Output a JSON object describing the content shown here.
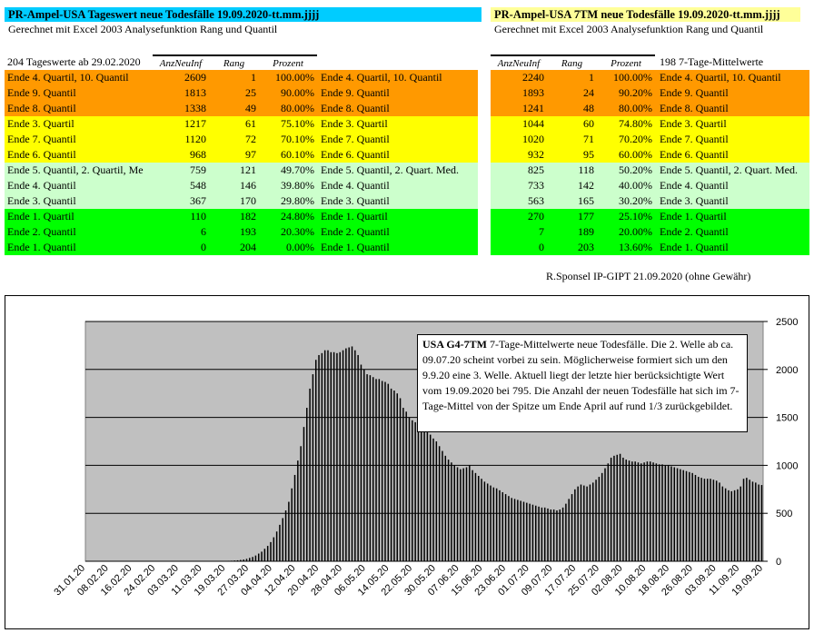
{
  "left": {
    "title": "PR-Ampel-USA Tageswert neue Todesfälle 19.09.2020-tt.mm.jjjj",
    "subtitle": "Gerechnet mit Excel 2003 Analysefunktion Rang und Quantil",
    "count_label": "204 Tageswerte ab 29.02.2020",
    "headers": [
      "AnzNeuInf",
      "Rang",
      "Prozent"
    ],
    "rows": [
      {
        "label": "Ende 4. Quartil, 10. Quantil",
        "value": "2609",
        "rank": "1",
        "pct": "100.00%",
        "label2": "Ende 4. Quartil, 10. Quantil"
      },
      {
        "label": "Ende 9. Quantil",
        "value": "1813",
        "rank": "25",
        "pct": "90.00%",
        "label2": "Ende 9. Quantil"
      },
      {
        "label": "Ende 8. Quantil",
        "value": "1338",
        "rank": "49",
        "pct": "80.00%",
        "label2": "Ende 8. Quantil"
      },
      {
        "label": "Ende 3. Quartil",
        "value": "1217",
        "rank": "61",
        "pct": "75.10%",
        "label2": "Ende 3. Quartil"
      },
      {
        "label": "Ende 7. Quantil",
        "value": "1120",
        "rank": "72",
        "pct": "70.10%",
        "label2": "Ende 7. Quantil"
      },
      {
        "label": "Ende 6. Quantil",
        "value": "968",
        "rank": "97",
        "pct": "60.10%",
        "label2": "Ende 6. Quantil"
      },
      {
        "label": "Ende 5. Quantil, 2. Quartil, Me",
        "value": "759",
        "rank": "121",
        "pct": "49.70%",
        "label2": "Ende 5. Quantil, 2. Quart. Med."
      },
      {
        "label": "Ende 4. Quantil",
        "value": "548",
        "rank": "146",
        "pct": "39.80%",
        "label2": "Ende 4. Quantil"
      },
      {
        "label": "Ende 3. Quantil",
        "value": "367",
        "rank": "170",
        "pct": "29.80%",
        "label2": "Ende 3. Quantil"
      },
      {
        "label": "Ende 1. Quartil",
        "value": "110",
        "rank": "182",
        "pct": "24.80%",
        "label2": "Ende 1. Quartil"
      },
      {
        "label": "Ende 2. Quantil",
        "value": "6",
        "rank": "193",
        "pct": "20.30%",
        "label2": "Ende 2. Quantil"
      },
      {
        "label": "Ende 1. Quantil",
        "value": "0",
        "rank": "204",
        "pct": "0.00%",
        "label2": "Ende 1. Quantil"
      }
    ]
  },
  "right": {
    "title": "PR-Ampel-USA 7TM neue Todesfälle 19.09.2020-tt.mm.jjjj",
    "subtitle": "Gerechnet mit Excel 2003 Analysefunktion Rang und Quantil",
    "count_label": "198  7-Tage-Mittelwerte",
    "headers": [
      "AnzNeuInf",
      "Rang",
      "Prozent"
    ],
    "rows": [
      {
        "value": "2240",
        "rank": "1",
        "pct": "100.00%",
        "label": "Ende 4. Quartil, 10. Quantil"
      },
      {
        "value": "1893",
        "rank": "24",
        "pct": "90.20%",
        "label": "Ende 9. Quantil"
      },
      {
        "value": "1241",
        "rank": "48",
        "pct": "80.00%",
        "label": "Ende 8. Quantil"
      },
      {
        "value": "1044",
        "rank": "60",
        "pct": "74.80%",
        "label": "Ende 3. Quartil"
      },
      {
        "value": "1020",
        "rank": "71",
        "pct": "70.20%",
        "label": "Ende 7. Quantil"
      },
      {
        "value": "932",
        "rank": "95",
        "pct": "60.00%",
        "label": "Ende 6. Quantil"
      },
      {
        "value": "825",
        "rank": "118",
        "pct": "50.20%",
        "label": "Ende 5. Quantil, 2. Quart. Med."
      },
      {
        "value": "733",
        "rank": "142",
        "pct": "40.00%",
        "label": "Ende 4. Quantil"
      },
      {
        "value": "563",
        "rank": "165",
        "pct": "30.20%",
        "label": "Ende 3. Quantil"
      },
      {
        "value": "270",
        "rank": "177",
        "pct": "25.10%",
        "label": "Ende 1. Quartil"
      },
      {
        "value": "7",
        "rank": "189",
        "pct": "20.00%",
        "label": "Ende 2. Quantil"
      },
      {
        "value": "0",
        "rank": "203",
        "pct": "13.60%",
        "label": "Ende 1. Quantil"
      }
    ]
  },
  "credit": "R.Sponsel IP-GIPT 21.09.2020 (ohne Gewähr)",
  "colors": {
    "title_left_bg": "#00ccff",
    "title_right_bg": "#ffff99",
    "orange": "#ff9900",
    "yellow": "#ffff00",
    "lightgreen": "#ccffcc",
    "green": "#00ff00",
    "plot_bg": "#c0c0c0"
  },
  "chart_data": {
    "type": "bar",
    "annotation_title": "USA  G4-7TM",
    "annotation_text": " 7-Tage-Mittelwerte neue Todesfälle. Die 2. Welle ab ca. 09.07.20 scheint vorbei zu sein. Möglicherweise formiert sich um den 9.9.20 eine 3. Welle. Aktuell liegt der letzte hier berücksichtigte Wert vom 19.09.2020  bei 795. Die Anzahl der neuen Todesfälle hat sich im 7-Tage-Mittel von der Spitze um Ende April auf rund 1/3 zurückgebildet.",
    "ylim": [
      0,
      2500
    ],
    "yticks": [
      "0",
      "500",
      "1000",
      "1500",
      "2000",
      "2500"
    ],
    "xticks": [
      "31.01.20",
      "08.02.20",
      "16.02.20",
      "24.02.20",
      "03.03.20",
      "11.03.20",
      "19.03.20",
      "27.03.20",
      "04.04.20",
      "12.04.20",
      "20.04.20",
      "28.04.20",
      "06.05.20",
      "14.05.20",
      "22.05.20",
      "30.05.20",
      "07.06.20",
      "15.06.20",
      "23.06.20",
      "01.07.20",
      "09.07.20",
      "17.07.20",
      "25.07.20",
      "02.08.20",
      "10.08.20",
      "18.08.20",
      "26.08.20",
      "03.09.20",
      "11.09.20",
      "19.09.20"
    ],
    "start": "31.01.20",
    "values": [
      0,
      0,
      0,
      0,
      0,
      0,
      0,
      0,
      0,
      0,
      0,
      0,
      0,
      0,
      0,
      0,
      0,
      0,
      0,
      0,
      0,
      0,
      0,
      0,
      0,
      0,
      0,
      0,
      0,
      0,
      0,
      0,
      0,
      0,
      0,
      0,
      0,
      0,
      0,
      0,
      1,
      1,
      1,
      2,
      3,
      3,
      4,
      5,
      6,
      8,
      10,
      14,
      18,
      25,
      35,
      45,
      60,
      80,
      100,
      130,
      160,
      200,
      250,
      310,
      380,
      450,
      530,
      620,
      760,
      900,
      1050,
      1200,
      1400,
      1600,
      1800,
      1950,
      2100,
      2150,
      2170,
      2200,
      2200,
      2180,
      2180,
      2170,
      2180,
      2200,
      2220,
      2230,
      2240,
      2200,
      2150,
      2050,
      2000,
      1950,
      1940,
      1920,
      1900,
      1900,
      1880,
      1870,
      1850,
      1800,
      1780,
      1750,
      1700,
      1600,
      1560,
      1500,
      1470,
      1450,
      1430,
      1400,
      1380,
      1350,
      1320,
      1280,
      1250,
      1200,
      1150,
      1100,
      1060,
      1030,
      1000,
      980,
      960,
      970,
      980,
      1000,
      950,
      920,
      890,
      860,
      830,
      810,
      790,
      770,
      760,
      740,
      720,
      700,
      680,
      660,
      650,
      640,
      630,
      620,
      610,
      600,
      590,
      580,
      570,
      560,
      560,
      550,
      540,
      540,
      530,
      540,
      560,
      600,
      650,
      700,
      750,
      780,
      800,
      790,
      780,
      800,
      820,
      850,
      880,
      920,
      970,
      1020,
      1080,
      1100,
      1110,
      1120,
      1080,
      1060,
      1050,
      1040,
      1040,
      1030,
      1020,
      1030,
      1040,
      1040,
      1030,
      1020,
      1010,
      1010,
      1000,
      1000,
      990,
      980,
      970,
      960,
      950,
      940,
      930,
      920,
      900,
      880,
      870,
      860,
      860,
      860,
      850,
      840,
      820,
      780,
      760,
      740,
      730,
      740,
      750,
      780,
      860,
      870,
      850,
      830,
      820,
      800,
      795
    ]
  }
}
